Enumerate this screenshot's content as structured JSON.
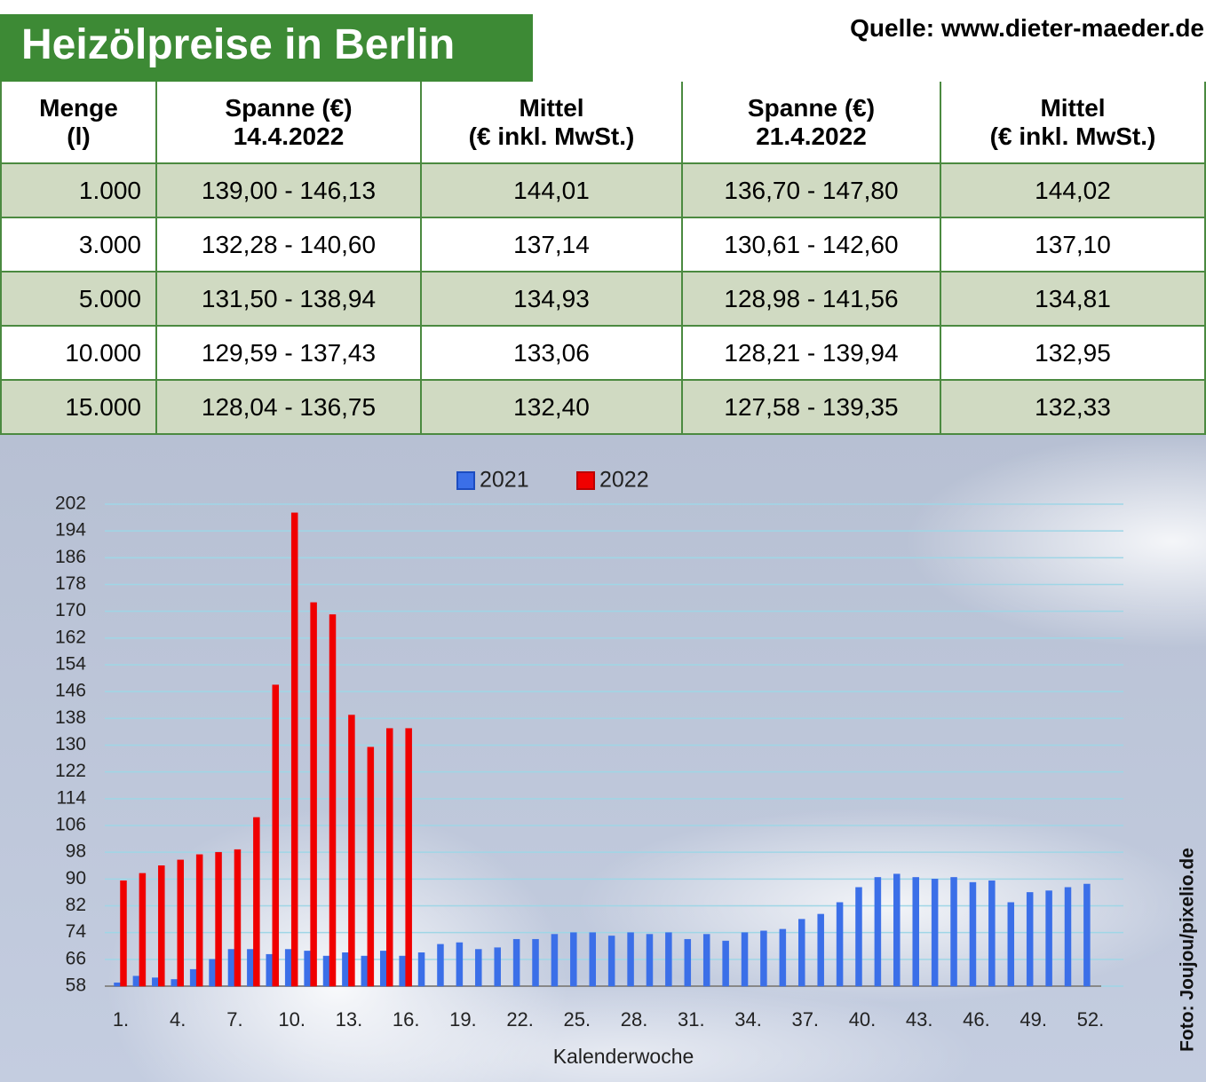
{
  "header": {
    "title": "Heizölpreise in Berlin",
    "source": "Quelle: www.dieter-maeder.de"
  },
  "table": {
    "header": [
      [
        "Menge",
        "(l)"
      ],
      [
        "Spanne (€)",
        "14.4.2022"
      ],
      [
        "Mittel",
        "(€ inkl. MwSt.)"
      ],
      [
        "Spanne (€)",
        "21.4.2022"
      ],
      [
        "Mittel",
        "(€ inkl. MwSt.)"
      ]
    ],
    "rows": [
      [
        "1.000",
        "139,00 - 146,13",
        "144,01",
        "136,70 - 147,80",
        "144,02"
      ],
      [
        "3.000",
        "132,28 - 140,60",
        "137,14",
        "130,61 - 142,60",
        "137,10"
      ],
      [
        "5.000",
        "131,50 - 138,94",
        "134,93",
        "128,98 - 141,56",
        "134,81"
      ],
      [
        "10.000",
        "129,59 - 137,43",
        "133,06",
        "128,21 - 139,94",
        "132,95"
      ],
      [
        "15.000",
        "128,04 - 136,75",
        "132,40",
        "127,58 - 139,35",
        "132,33"
      ]
    ]
  },
  "photo_credit": "Foto: Joujou/pixelio.de",
  "chart_data": {
    "type": "bar",
    "x_label": "Kalenderwoche",
    "categories": [
      "1.",
      null,
      null,
      "4.",
      null,
      null,
      "7.",
      null,
      null,
      "10.",
      null,
      null,
      "13.",
      null,
      null,
      "16.",
      null,
      null,
      "19.",
      null,
      null,
      "22.",
      null,
      null,
      "25.",
      null,
      null,
      "28.",
      null,
      null,
      "31.",
      null,
      null,
      "34.",
      null,
      null,
      "37.",
      null,
      null,
      "40.",
      null,
      null,
      "43.",
      null,
      null,
      "46.",
      null,
      null,
      "49.",
      null,
      null,
      "52."
    ],
    "series": [
      {
        "name": "2021",
        "color": "#3b6fe8",
        "values": [
          59,
          61,
          60.5,
          60,
          63,
          66,
          69,
          69,
          67.5,
          69,
          68.5,
          67,
          68,
          67,
          68.5,
          67,
          68,
          70.5,
          71,
          69,
          69.5,
          72,
          72,
          73.5,
          74,
          74,
          73,
          74,
          73.5,
          74,
          72,
          73.5,
          71.5,
          74,
          74.5,
          75,
          78,
          79.5,
          83,
          87.5,
          90.5,
          91.5,
          90.5,
          90,
          90.5,
          89,
          89.5,
          83,
          86,
          86.5,
          87.5,
          88.5
        ]
      },
      {
        "name": "2022",
        "color": "#f00000",
        "values": [
          89.5,
          91.7,
          94,
          95.7,
          97.3,
          98,
          98.8,
          108.4,
          148,
          199.4,
          172.6,
          169,
          139,
          129.4,
          135,
          135,
          null,
          null,
          null,
          null,
          null,
          null,
          null,
          null,
          null,
          null,
          null,
          null,
          null,
          null,
          null,
          null,
          null,
          null,
          null,
          null,
          null,
          null,
          null,
          null,
          null,
          null,
          null,
          null,
          null,
          null,
          null,
          null,
          null,
          null,
          null,
          null
        ]
      }
    ],
    "ylim": [
      58,
      202
    ],
    "yticks": [
      58,
      66,
      74,
      82,
      90,
      98,
      106,
      114,
      122,
      130,
      138,
      146,
      154,
      162,
      170,
      178,
      186,
      194,
      202
    ],
    "grid": true,
    "legend": "top"
  }
}
